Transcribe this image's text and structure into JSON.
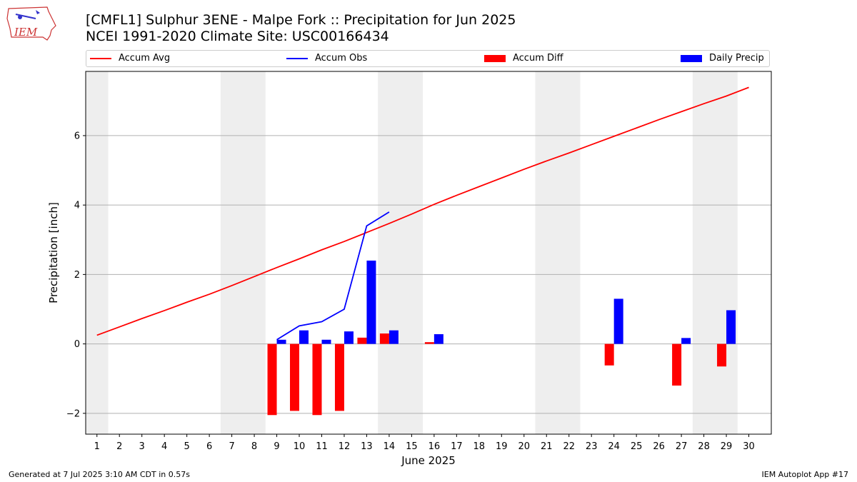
{
  "header": {
    "title_line1": "[CMFL1] Sulphur 3ENE - Malpe Fork :: Precipitation for Jun 2025",
    "title_line2": "NCEI 1991-2020 Climate Site: USC00166434"
  },
  "logo": {
    "text": "IEM",
    "icon": "iem-iowa-logo-icon"
  },
  "footer": {
    "generated": "Generated at 7 Jul 2025 3:10 AM CDT in 0.57s",
    "app": "IEM Autoplot App #17"
  },
  "legend": [
    {
      "label": "Accum Avg",
      "kind": "line",
      "color": "#ff0000"
    },
    {
      "label": "Accum Obs",
      "kind": "line",
      "color": "#0000ff"
    },
    {
      "label": "Accum Diff",
      "kind": "bar",
      "color": "#ff0000"
    },
    {
      "label": "Daily Precip",
      "kind": "bar",
      "color": "#0000ff"
    }
  ],
  "chart_data": {
    "type": "bar",
    "xlabel": "June 2025",
    "ylabel": "Precipitation [inch]",
    "x": [
      1,
      2,
      3,
      4,
      5,
      6,
      7,
      8,
      9,
      10,
      11,
      12,
      13,
      14,
      15,
      16,
      17,
      18,
      19,
      20,
      21,
      22,
      23,
      24,
      25,
      26,
      27,
      28,
      29,
      30
    ],
    "xlim": [
      0.5,
      31
    ],
    "ylim": [
      -2.6,
      7.85
    ],
    "yticks": [
      -2,
      0,
      2,
      4,
      6
    ],
    "ytick_labels": [
      "−2",
      "0",
      "2",
      "4",
      "6"
    ],
    "grid": "horizontal",
    "legend_position": "top",
    "weekend_shading": [
      [
        0.5,
        1.5
      ],
      [
        6.5,
        8.5
      ],
      [
        13.5,
        15.5
      ],
      [
        20.5,
        22.5
      ],
      [
        27.5,
        29.5
      ]
    ],
    "shade_color": "#eeeeee",
    "series": [
      {
        "name": "Accum Avg",
        "type": "line",
        "color": "#ff0000",
        "x": [
          1,
          2,
          3,
          4,
          5,
          6,
          7,
          8,
          9,
          10,
          11,
          12,
          13,
          14,
          15,
          16,
          17,
          18,
          19,
          20,
          21,
          22,
          23,
          24,
          25,
          26,
          27,
          28,
          29,
          30
        ],
        "values": [
          0.25,
          0.49,
          0.73,
          0.96,
          1.2,
          1.43,
          1.68,
          1.94,
          2.2,
          2.45,
          2.71,
          2.95,
          3.21,
          3.47,
          3.74,
          4.02,
          4.28,
          4.53,
          4.78,
          5.03,
          5.27,
          5.5,
          5.74,
          5.98,
          6.22,
          6.46,
          6.69,
          6.92,
          7.14,
          7.39
        ]
      },
      {
        "name": "Accum Obs",
        "type": "line",
        "color": "#0000ff",
        "x": [
          9,
          10,
          11,
          12,
          13,
          14
        ],
        "values": [
          0.12,
          0.52,
          0.64,
          1.0,
          3.4,
          3.8
        ]
      },
      {
        "name": "Accum Diff",
        "type": "bar",
        "color": "#ff0000",
        "x": [
          9,
          10,
          11,
          12,
          13,
          14,
          16,
          24,
          27,
          29
        ],
        "values": [
          -2.05,
          -1.93,
          -2.05,
          -1.93,
          0.18,
          0.3,
          0.05,
          -0.62,
          -1.2,
          -0.65
        ]
      },
      {
        "name": "Daily Precip",
        "type": "bar",
        "color": "#0000ff",
        "x": [
          9,
          10,
          11,
          12,
          13,
          14,
          16,
          24,
          27,
          29
        ],
        "values": [
          0.12,
          0.39,
          0.12,
          0.36,
          2.4,
          0.39,
          0.28,
          1.3,
          0.17,
          0.97
        ]
      }
    ]
  }
}
